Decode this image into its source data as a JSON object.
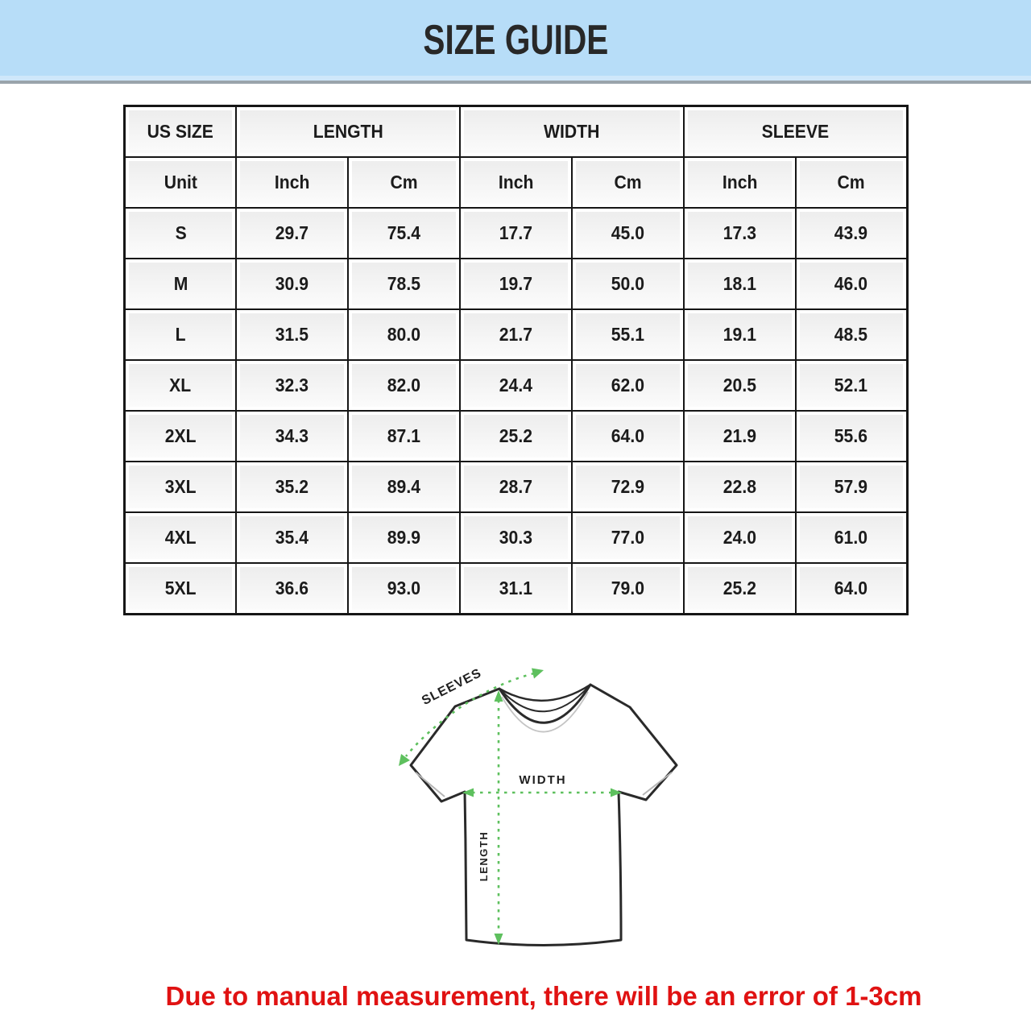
{
  "banner": {
    "title": "SIZE GUIDE",
    "bg_color": "#b7ddf8"
  },
  "table": {
    "groups": [
      "US SIZE",
      "LENGTH",
      "WIDTH",
      "SLEEVE"
    ],
    "unit_row": [
      "Unit",
      "Inch",
      "Cm",
      "Inch",
      "Cm",
      "Inch",
      "Cm"
    ],
    "rows": [
      {
        "size": "S",
        "values": [
          "29.7",
          "75.4",
          "17.7",
          "45.0",
          "17.3",
          "43.9"
        ]
      },
      {
        "size": "M",
        "values": [
          "30.9",
          "78.5",
          "19.7",
          "50.0",
          "18.1",
          "46.0"
        ]
      },
      {
        "size": "L",
        "values": [
          "31.5",
          "80.0",
          "21.7",
          "55.1",
          "19.1",
          "48.5"
        ]
      },
      {
        "size": "XL",
        "values": [
          "32.3",
          "82.0",
          "24.4",
          "62.0",
          "20.5",
          "52.1"
        ]
      },
      {
        "size": "2XL",
        "values": [
          "34.3",
          "87.1",
          "25.2",
          "64.0",
          "21.9",
          "55.6"
        ]
      },
      {
        "size": "3XL",
        "values": [
          "35.2",
          "89.4",
          "28.7",
          "72.9",
          "22.8",
          "57.9"
        ]
      },
      {
        "size": "4XL",
        "values": [
          "35.4",
          "89.9",
          "30.3",
          "77.0",
          "24.0",
          "61.0"
        ]
      },
      {
        "size": "5XL",
        "values": [
          "36.6",
          "93.0",
          "31.1",
          "79.0",
          "25.2",
          "64.0"
        ]
      }
    ]
  },
  "diagram": {
    "labels": {
      "sleeves": "SLEEVES",
      "width": "WIDTH",
      "length": "LENGTH"
    },
    "arrow_color": "#5ec05e"
  },
  "footer": {
    "note": "Due to manual measurement, there will be an error of 1-3cm",
    "color": "#e01212"
  }
}
